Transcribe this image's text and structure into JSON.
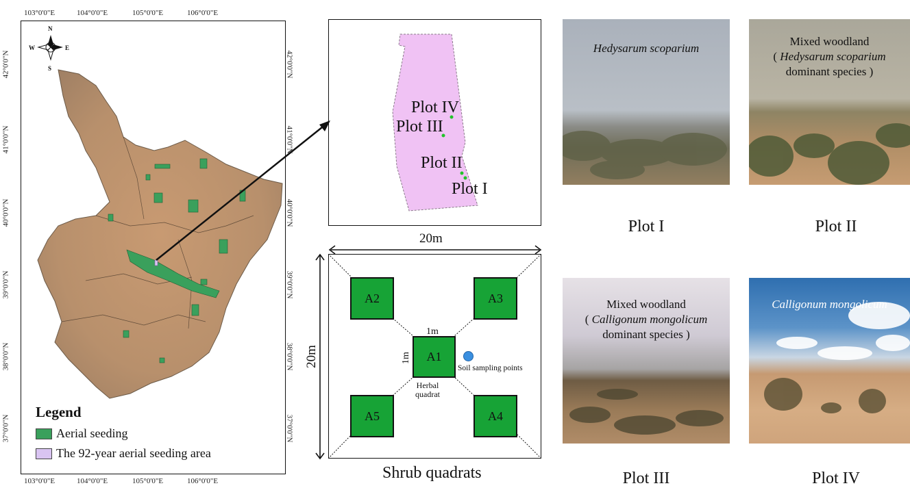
{
  "map": {
    "lon_ticks": [
      "103°0'0\"E",
      "104°0'0\"E",
      "105°0'0\"E",
      "106°0'0\"E"
    ],
    "lat_ticks": [
      "42°0'0\"N",
      "41°0'0\"N",
      "40°0'0\"N",
      "39°0'0\"N",
      "38°0'0\"N",
      "37°0'0\"N"
    ],
    "compass": {
      "n": "N",
      "s": "S",
      "e": "E",
      "w": "W"
    },
    "legend": {
      "title": "Legend",
      "items": [
        {
          "label": "Aerial seeding",
          "color": "#3aa05c"
        },
        {
          "label": "The 92-year aerial seeding area",
          "color": "#d9c4f2"
        }
      ]
    }
  },
  "inset": {
    "plots": [
      "Plot IV",
      "Plot III",
      "Plot II",
      "Plot I"
    ],
    "area_color": "#f0c2f4",
    "point_color": "#22c32a"
  },
  "quadrat": {
    "width_label": "20m",
    "height_label": "20m",
    "quadrats": [
      "A2",
      "A3",
      "A1",
      "A5",
      "A4"
    ],
    "inner_width_label": "1m",
    "inner_height_label": "1m",
    "herbal_label": "Herbal\nquadrat",
    "soil_label": "Soil sampling points",
    "title": "Shrub quadrats"
  },
  "photos": [
    {
      "caption_italic": "Hedysarum scoparium",
      "caption_line1": "",
      "caption_line2": "",
      "label": "Plot I"
    },
    {
      "caption_line1": "Mixed woodland",
      "caption_italic": "Hedysarum scoparium",
      "caption_pre": "( ",
      "caption_line2": "dominant species )",
      "label": "Plot II"
    },
    {
      "caption_line1": "Mixed woodland",
      "caption_italic": "Calligonum mongolicum",
      "caption_pre": "( ",
      "caption_line2": "dominant species )",
      "label": "Plot III"
    },
    {
      "caption_italic": "Calligonum mongolicum",
      "caption_line1": "",
      "caption_line2": "",
      "label": "Plot IV"
    }
  ]
}
